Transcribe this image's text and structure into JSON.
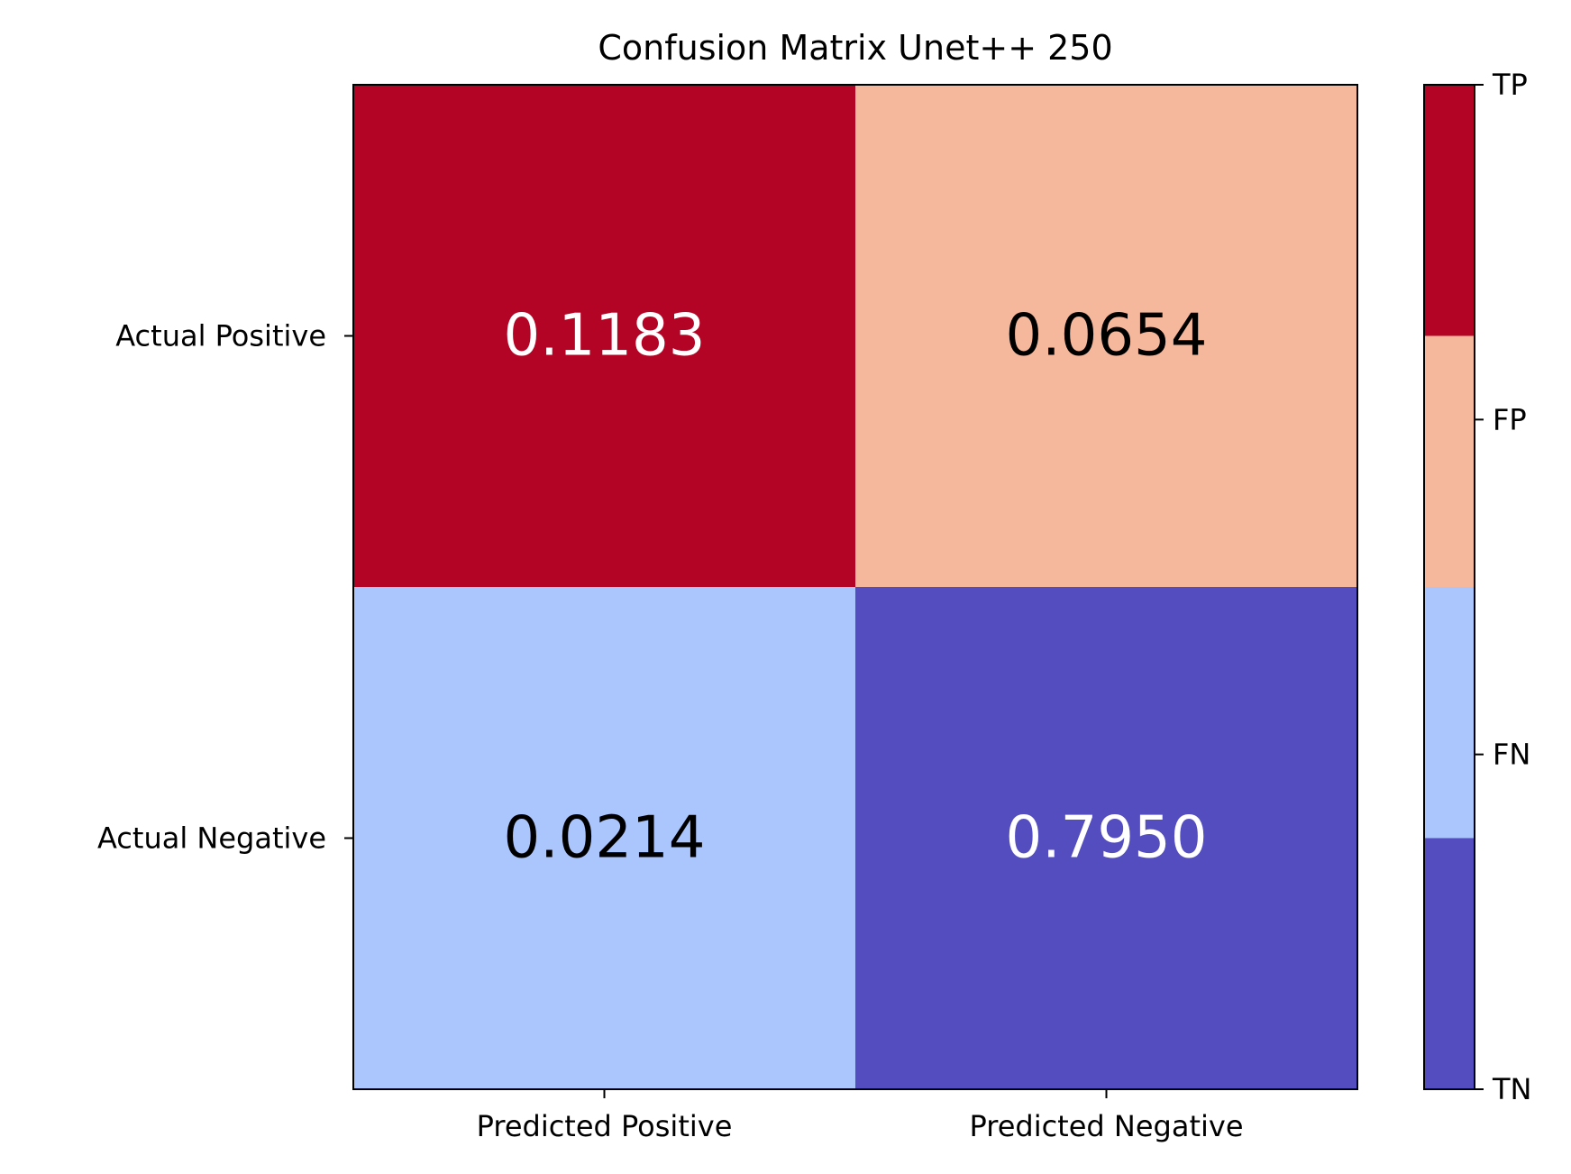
{
  "chart_data": {
    "type": "heatmap",
    "title": "Confusion Matrix Unet++ 250",
    "xlabel": "",
    "ylabel": "",
    "x_categories": [
      "Predicted Positive",
      "Predicted Negative"
    ],
    "y_categories": [
      "Actual Positive",
      "Actual Negative"
    ],
    "values": [
      [
        0.1183,
        0.0654
      ],
      [
        0.0214,
        0.795
      ]
    ],
    "value_labels": [
      [
        "0.1183",
        "0.0654"
      ],
      [
        "0.0214",
        "0.7950"
      ]
    ],
    "cell_classes": [
      [
        "TP",
        "FP"
      ],
      [
        "FN",
        "TN"
      ]
    ],
    "cell_colors": [
      [
        "#b40426",
        "#f6b89c"
      ],
      [
        "#abc5fd",
        "#534dbf"
      ]
    ],
    "cell_text_colors": [
      [
        "#ffffff",
        "#000000"
      ],
      [
        "#000000",
        "#ffffff"
      ]
    ],
    "colorbar": {
      "ticks_top_to_bottom": [
        "TP",
        "FP",
        "FN",
        "TN"
      ],
      "segments_top_to_bottom": [
        "#b40426",
        "#f6b89c",
        "#abc5fd",
        "#534dbf"
      ]
    },
    "grid": false,
    "legend": "colorbar-right"
  }
}
